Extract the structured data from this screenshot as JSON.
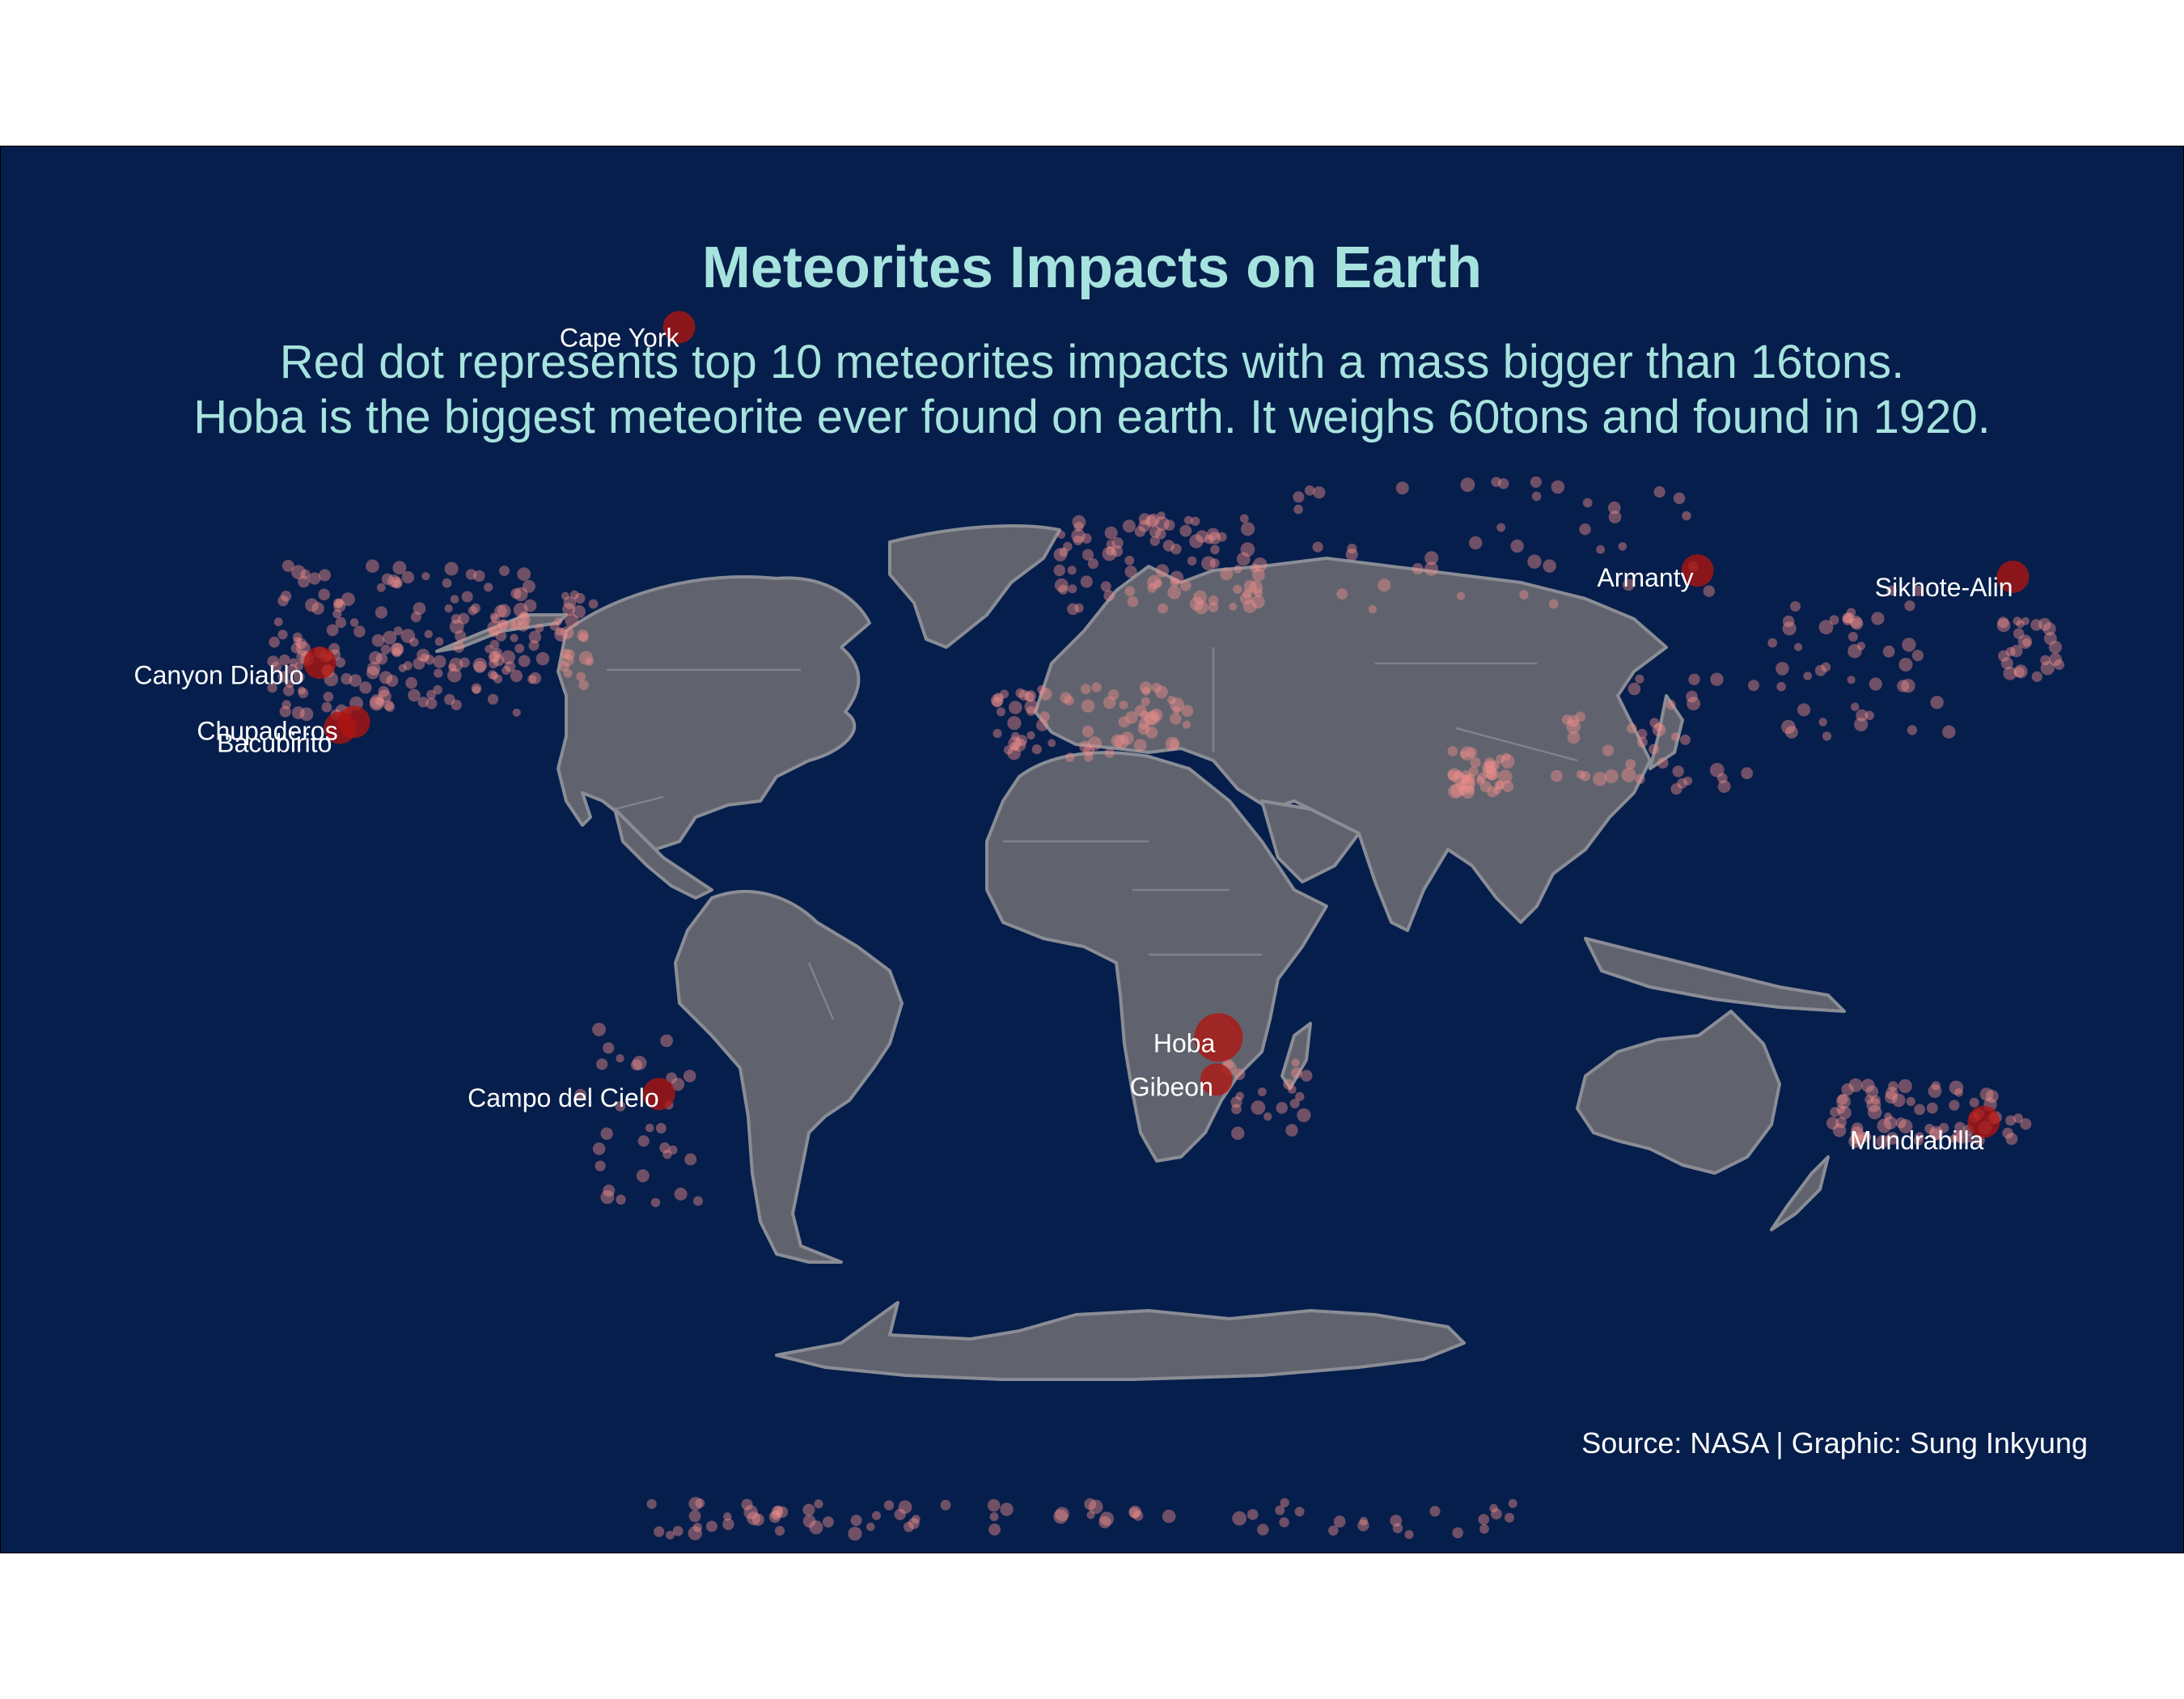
{
  "title": "Meteorites Impacts on Earth",
  "subtitle_lines": [
    "Red dot represents top 10 meteorites impacts with a mass bigger than 16tons.",
    "Hoba is the biggest meteorite ever found on earth. It weighs 60tons and found in 1920."
  ],
  "caption": "Source: NASA | Graphic: Sung Inkyung",
  "colors": {
    "background": "#061e4b",
    "land": "#60636d",
    "text_accent": "#a7e3de",
    "all_impacts": "#f08f89",
    "top_impacts": "#b0140f"
  },
  "top_meteorites": [
    {
      "name": "Hoba",
      "lon": 17.9,
      "lat": -19.6,
      "mass_tons": 60,
      "year": 1920
    },
    {
      "name": "Cape York",
      "lon": -64.9,
      "lat": 76.1
    },
    {
      "name": "Campo del Cielo",
      "lon": -61.7,
      "lat": -27.5
    },
    {
      "name": "Canyon Diablo",
      "lon": -111.0,
      "lat": 35.0
    },
    {
      "name": "Armanty",
      "lon": 88.7,
      "lat": 47.0
    },
    {
      "name": "Gibeon",
      "lon": 17.7,
      "lat": -25.5
    },
    {
      "name": "Chupaderos",
      "lon": -105.1,
      "lat": 27.0
    },
    {
      "name": "Mundrabilla",
      "lon": 127.6,
      "lat": -31.3
    },
    {
      "name": "Sikhote-Alin",
      "lon": 134.7,
      "lat": 46.2
    },
    {
      "name": "Bacubirito",
      "lon": -107.0,
      "lat": 26.2
    }
  ]
}
